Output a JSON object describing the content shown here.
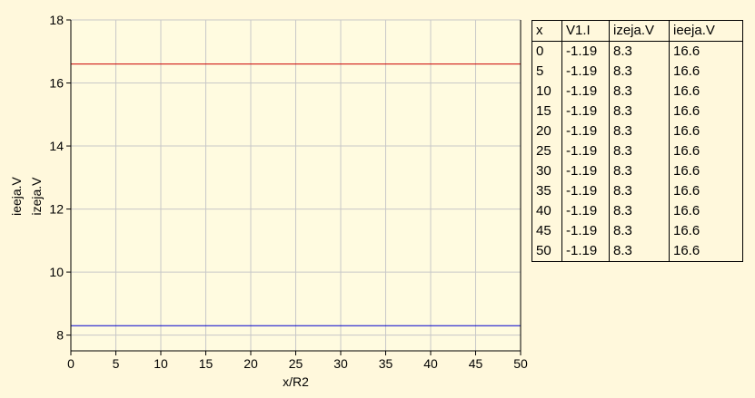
{
  "chart_data": {
    "type": "line",
    "xlabel": "x/R2",
    "ylabels": [
      {
        "text": "ieeja.V",
        "color": "#cc0000"
      },
      {
        "text": "izeja.V",
        "color": "#0000cc"
      }
    ],
    "xlim": [
      0,
      50
    ],
    "ylim": [
      7.5,
      18
    ],
    "x_ticks": [
      0,
      5,
      10,
      15,
      20,
      25,
      30,
      35,
      40,
      45,
      50
    ],
    "y_ticks": [
      8,
      10,
      12,
      14,
      16,
      18
    ],
    "grid": true,
    "series": [
      {
        "name": "ieeja.V",
        "color": "#cc0000",
        "x": [
          0,
          50
        ],
        "y": [
          16.6,
          16.6
        ]
      },
      {
        "name": "izeja.V",
        "color": "#0000cc",
        "x": [
          0,
          50
        ],
        "y": [
          8.3,
          8.3
        ]
      }
    ]
  },
  "table": {
    "headers": [
      "x",
      "V1.I",
      "izeja.V",
      "ieeja.V"
    ],
    "rows": [
      [
        "0",
        "-1.19",
        "8.3",
        "16.6"
      ],
      [
        "5",
        "-1.19",
        "8.3",
        "16.6"
      ],
      [
        "10",
        "-1.19",
        "8.3",
        "16.6"
      ],
      [
        "15",
        "-1.19",
        "8.3",
        "16.6"
      ],
      [
        "20",
        "-1.19",
        "8.3",
        "16.6"
      ],
      [
        "25",
        "-1.19",
        "8.3",
        "16.6"
      ],
      [
        "30",
        "-1.19",
        "8.3",
        "16.6"
      ],
      [
        "35",
        "-1.19",
        "8.3",
        "16.6"
      ],
      [
        "40",
        "-1.19",
        "8.3",
        "16.6"
      ],
      [
        "45",
        "-1.19",
        "8.3",
        "16.6"
      ],
      [
        "50",
        "-1.19",
        "8.3",
        "16.6"
      ]
    ]
  }
}
